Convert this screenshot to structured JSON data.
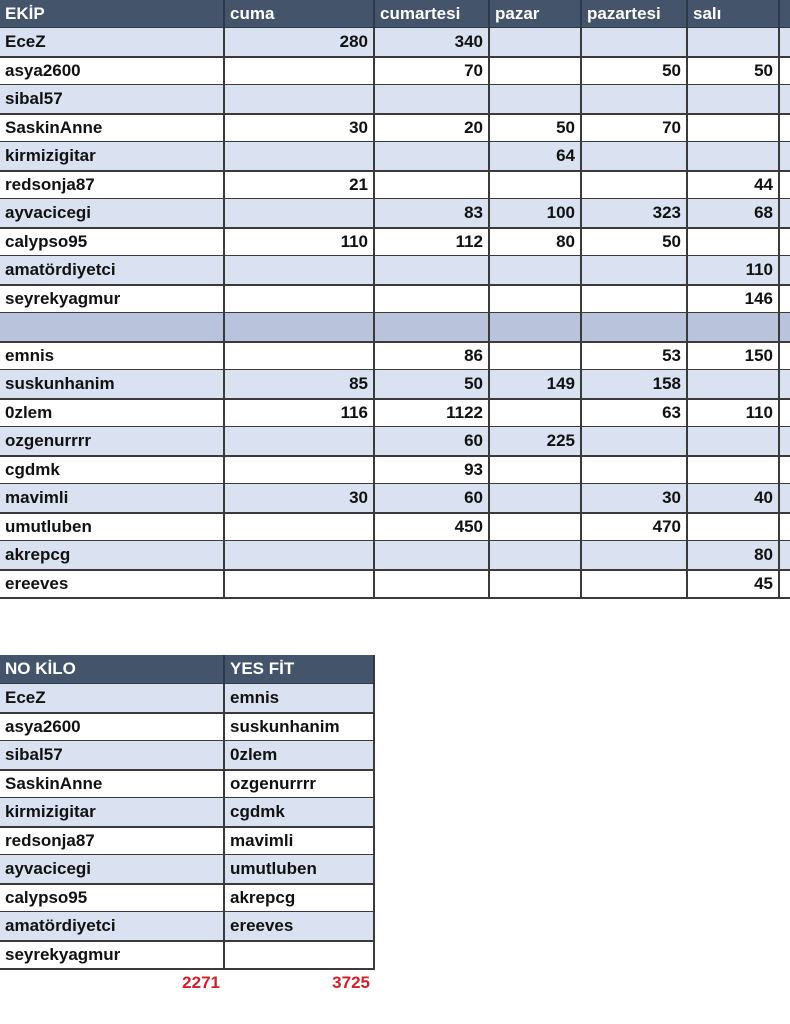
{
  "table": {
    "header": [
      "EKİP",
      "cuma",
      "cumartesi",
      "pazar",
      "pazartesi",
      "salı"
    ],
    "rows": [
      [
        "EceZ",
        280,
        340,
        null,
        null,
        null
      ],
      [
        "asya2600",
        null,
        70,
        null,
        50,
        50
      ],
      [
        "sibal57",
        null,
        null,
        null,
        null,
        null
      ],
      [
        "SaskinAnne",
        30,
        20,
        50,
        70,
        null
      ],
      [
        "kirmizigitar",
        null,
        null,
        64,
        null,
        null
      ],
      [
        "redsonja87",
        21,
        null,
        null,
        null,
        44
      ],
      [
        "ayvacicegi",
        null,
        83,
        100,
        323,
        68
      ],
      [
        "calypso95",
        110,
        112,
        80,
        50,
        null
      ],
      [
        "amatördiyetci",
        null,
        null,
        null,
        null,
        110
      ],
      [
        "seyrekyagmur",
        null,
        null,
        null,
        null,
        146
      ],
      [
        null,
        null,
        null,
        null,
        null,
        null
      ],
      [
        "emnis",
        null,
        86,
        null,
        53,
        150
      ],
      [
        "suskunhanim",
        85,
        50,
        149,
        158,
        null
      ],
      [
        "0zlem",
        116,
        1122,
        null,
        63,
        110
      ],
      [
        "ozgenurrrr",
        null,
        60,
        225,
        null,
        null
      ],
      [
        "cgdmk",
        null,
        93,
        null,
        null,
        null
      ],
      [
        "mavimli",
        30,
        60,
        null,
        30,
        40
      ],
      [
        "umutluben",
        null,
        450,
        null,
        470,
        null
      ],
      [
        "akrepcg",
        null,
        null,
        null,
        null,
        80
      ],
      [
        "ereeves",
        null,
        null,
        null,
        null,
        45
      ]
    ]
  },
  "teams": {
    "header": [
      "NO KİLO",
      "YES FİT"
    ],
    "rows": [
      [
        "EceZ",
        "emnis"
      ],
      [
        "asya2600",
        "suskunhanim"
      ],
      [
        "sibal57",
        "0zlem"
      ],
      [
        "SaskinAnne",
        "ozgenurrrr"
      ],
      [
        "kirmizigitar",
        "cgdmk"
      ],
      [
        "redsonja87",
        "mavimli"
      ],
      [
        "ayvacicegi",
        "umutluben"
      ],
      [
        "calypso95",
        "akrepcg"
      ],
      [
        "amatördiyetci",
        "ereeves"
      ],
      [
        "seyrekyagmur",
        null
      ]
    ],
    "totals": [
      2271,
      3725
    ]
  }
}
